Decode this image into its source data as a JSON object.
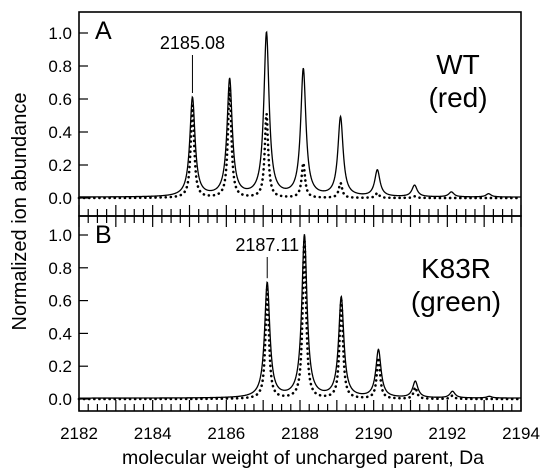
{
  "chart_data": {
    "type": "line",
    "xlabel": "molecular weight of uncharged parent, Da",
    "ylabel": "Normalized ion abundance",
    "xlim": [
      2182,
      2194
    ],
    "x_ticks": [
      "2182",
      "2184",
      "2186",
      "2188",
      "2190",
      "2192",
      "2194"
    ],
    "panels": [
      {
        "panel_label": "A",
        "title": "WT",
        "subtitle": "(red)",
        "ylim": [
          0,
          1.05
        ],
        "y_ticks": [
          "0.0",
          "0.2",
          "0.4",
          "0.6",
          "0.8",
          "1.0"
        ],
        "peak_label": {
          "text": "2185.08",
          "x": 2185.08
        },
        "series": [
          {
            "style": "solid",
            "peak_x": [
              2185.08,
              2186.09,
              2187.09,
              2188.09,
              2189.1,
              2190.1,
              2191.11,
              2192.11,
              2193.12
            ],
            "peak_y": [
              0.6,
              0.71,
              0.99,
              0.77,
              0.48,
              0.16,
              0.07,
              0.03,
              0.02
            ]
          },
          {
            "style": "dotted",
            "peak_x": [
              2185.08,
              2186.09,
              2187.09,
              2188.09,
              2189.1,
              2190.1,
              2191.11
            ],
            "peak_y": [
              0.56,
              0.67,
              0.51,
              0.21,
              0.09,
              0.03,
              0.01
            ]
          }
        ]
      },
      {
        "panel_label": "B",
        "title": "K83R",
        "subtitle": "(green)",
        "ylim": [
          -0.05,
          1.05
        ],
        "y_ticks": [
          "0.0",
          "0.2",
          "0.4",
          "0.6",
          "0.8",
          "1.0"
        ],
        "peak_label": {
          "text": "2187.11",
          "x": 2187.11
        },
        "series": [
          {
            "style": "solid",
            "peak_x": [
              2187.11,
              2188.12,
              2189.12,
              2190.13,
              2191.13,
              2192.14,
              2193.14
            ],
            "peak_y": [
              0.7,
              0.99,
              0.61,
              0.29,
              0.1,
              0.04,
              0.01
            ]
          },
          {
            "style": "dotted",
            "peak_x": [
              2187.11,
              2188.12,
              2189.12,
              2190.13,
              2191.13,
              2192.14
            ],
            "peak_y": [
              0.67,
              0.97,
              0.6,
              0.25,
              0.07,
              0.02
            ]
          }
        ]
      }
    ]
  }
}
